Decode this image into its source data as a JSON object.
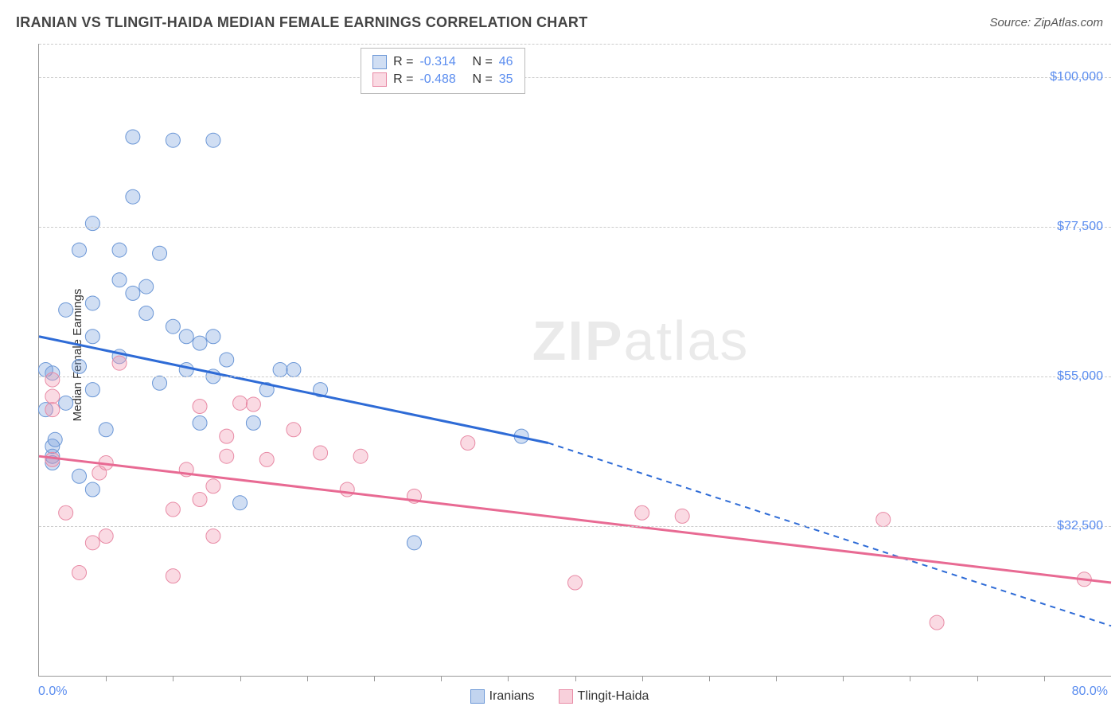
{
  "header": {
    "title": "IRANIAN VS TLINGIT-HAIDA MEDIAN FEMALE EARNINGS CORRELATION CHART",
    "source": "Source: ZipAtlas.com"
  },
  "chart": {
    "type": "scatter",
    "ylabel": "Median Female Earnings",
    "xlim": [
      0,
      80
    ],
    "ylim": [
      10000,
      105000
    ],
    "x_axis_left_label": "0.0%",
    "x_axis_right_label": "80.0%",
    "y_ticks": [
      32500,
      55000,
      77500,
      100000
    ],
    "y_tick_labels": [
      "$32,500",
      "$55,000",
      "$77,500",
      "$100,000"
    ],
    "x_minor_ticks": [
      5,
      10,
      15,
      20,
      25,
      30,
      35,
      40,
      45,
      50,
      55,
      60,
      65,
      70,
      75
    ],
    "gridline_color": "#cccccc",
    "background_color": "#ffffff",
    "series": [
      {
        "name": "Iranians",
        "color_fill": "rgba(120,160,220,0.35)",
        "color_stroke": "#6a96d6",
        "line_color": "#2e6bd6",
        "marker_radius": 9,
        "R": "-0.314",
        "N": "46",
        "trend": {
          "x1": 0,
          "y1": 61000,
          "x2": 38,
          "y2": 45000,
          "x3": 80,
          "y3": 17500
        },
        "points": [
          [
            1,
            42000
          ],
          [
            1,
            43000
          ],
          [
            1,
            44500
          ],
          [
            1.2,
            45500
          ],
          [
            0.5,
            50000
          ],
          [
            2,
            51000
          ],
          [
            1,
            55500
          ],
          [
            0.5,
            56000
          ],
          [
            4,
            38000
          ],
          [
            3,
            40000
          ],
          [
            4,
            53000
          ],
          [
            5,
            47000
          ],
          [
            3,
            56500
          ],
          [
            4,
            66000
          ],
          [
            4,
            61000
          ],
          [
            2,
            65000
          ],
          [
            4,
            78000
          ],
          [
            3,
            74000
          ],
          [
            6,
            69500
          ],
          [
            7,
            67500
          ],
          [
            8,
            68500
          ],
          [
            6,
            74000
          ],
          [
            7,
            91000
          ],
          [
            10,
            90500
          ],
          [
            13,
            90500
          ],
          [
            7,
            82000
          ],
          [
            9,
            73500
          ],
          [
            6,
            58000
          ],
          [
            8,
            64500
          ],
          [
            9,
            54000
          ],
          [
            10,
            62500
          ],
          [
            11,
            61000
          ],
          [
            11,
            56000
          ],
          [
            12,
            60000
          ],
          [
            13,
            61000
          ],
          [
            13,
            55000
          ],
          [
            12,
            48000
          ],
          [
            14,
            57500
          ],
          [
            18,
            56000
          ],
          [
            19,
            56000
          ],
          [
            17,
            53000
          ],
          [
            16,
            48000
          ],
          [
            15,
            36000
          ],
          [
            21,
            53000
          ],
          [
            28,
            30000
          ],
          [
            36,
            46000
          ]
        ]
      },
      {
        "name": "Tlingit-Haida",
        "color_fill": "rgba(240,150,175,0.35)",
        "color_stroke": "#e88aa5",
        "line_color": "#e86a93",
        "marker_radius": 9,
        "R": "-0.488",
        "N": "35",
        "trend": {
          "x1": 0,
          "y1": 43000,
          "x2": 80,
          "y2": 24000
        },
        "points": [
          [
            1,
            42500
          ],
          [
            1,
            50000
          ],
          [
            1,
            54500
          ],
          [
            1,
            52000
          ],
          [
            2,
            34500
          ],
          [
            3,
            25500
          ],
          [
            4,
            30000
          ],
          [
            5,
            31000
          ],
          [
            6,
            57000
          ],
          [
            4.5,
            40500
          ],
          [
            5,
            42000
          ],
          [
            10,
            25000
          ],
          [
            10,
            35000
          ],
          [
            11,
            41000
          ],
          [
            12,
            50500
          ],
          [
            12,
            36500
          ],
          [
            13,
            38500
          ],
          [
            14,
            43000
          ],
          [
            15,
            51000
          ],
          [
            16,
            50800
          ],
          [
            14,
            46000
          ],
          [
            13,
            31000
          ],
          [
            17,
            42500
          ],
          [
            21,
            43500
          ],
          [
            19,
            47000
          ],
          [
            23,
            38000
          ],
          [
            24,
            43000
          ],
          [
            28,
            37000
          ],
          [
            32,
            45000
          ],
          [
            40,
            24000
          ],
          [
            45,
            34500
          ],
          [
            48,
            34000
          ],
          [
            63,
            33500
          ],
          [
            67,
            18000
          ],
          [
            78,
            24500
          ]
        ]
      }
    ],
    "footer_legend": [
      {
        "label": "Iranians",
        "fill": "rgba(120,160,220,0.45)",
        "stroke": "#6a96d6"
      },
      {
        "label": "Tlingit-Haida",
        "fill": "rgba(240,150,175,0.45)",
        "stroke": "#e88aa5"
      }
    ],
    "watermark": {
      "bold": "ZIP",
      "rest": "atlas"
    }
  }
}
